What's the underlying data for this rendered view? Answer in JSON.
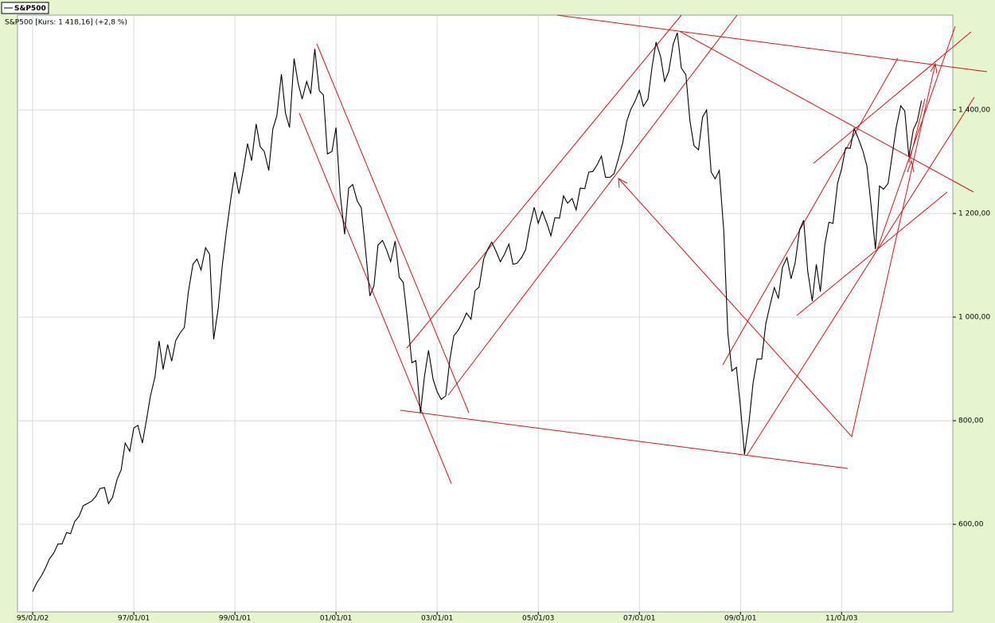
{
  "chart_data": {
    "type": "line",
    "legend_label": "S&P500",
    "title": "S&P500 [Kurs: 1 418,16] (+2,8 %)",
    "grid": true,
    "xlim": [
      1994.7,
      2013.2
    ],
    "xticks": [
      {
        "value": 1995.0,
        "label": "95/01/02"
      },
      {
        "value": 1997.0,
        "label": "97/01/01"
      },
      {
        "value": 1999.0,
        "label": "99/01/01"
      },
      {
        "value": 2001.0,
        "label": "01/01/01"
      },
      {
        "value": 2003.0,
        "label": "03/01/01"
      },
      {
        "value": 2005.0,
        "label": "05/01/03"
      },
      {
        "value": 2007.0,
        "label": "07/01/01"
      },
      {
        "value": 2009.0,
        "label": "09/01/01"
      },
      {
        "value": 2011.0,
        "label": "11/01/03"
      }
    ],
    "ylim": [
      431,
      1583
    ],
    "yticks": [
      {
        "value": 600,
        "label": "600,00"
      },
      {
        "value": 800,
        "label": "800,00"
      },
      {
        "value": 1000,
        "label": "1 000,00"
      },
      {
        "value": 1200,
        "label": "1 200,00"
      },
      {
        "value": 1400,
        "label": "1 400,00"
      }
    ],
    "x": [
      1995.0,
      1995.08,
      1995.17,
      1995.25,
      1995.33,
      1995.42,
      1995.5,
      1995.58,
      1995.67,
      1995.75,
      1995.83,
      1995.92,
      1996.0,
      1996.08,
      1996.17,
      1996.25,
      1996.33,
      1996.42,
      1996.5,
      1996.58,
      1996.67,
      1996.75,
      1996.83,
      1996.92,
      1997.0,
      1997.08,
      1997.17,
      1997.25,
      1997.33,
      1997.42,
      1997.5,
      1997.58,
      1997.67,
      1997.75,
      1997.83,
      1997.92,
      1998.0,
      1998.08,
      1998.17,
      1998.25,
      1998.33,
      1998.42,
      1998.5,
      1998.58,
      1998.67,
      1998.75,
      1998.83,
      1998.92,
      1999.0,
      1999.08,
      1999.17,
      1999.25,
      1999.33,
      1999.42,
      1999.5,
      1999.58,
      1999.67,
      1999.75,
      1999.83,
      1999.92,
      2000.0,
      2000.08,
      2000.17,
      2000.25,
      2000.33,
      2000.42,
      2000.5,
      2000.58,
      2000.67,
      2000.75,
      2000.83,
      2000.92,
      2001.0,
      2001.08,
      2001.17,
      2001.25,
      2001.33,
      2001.42,
      2001.5,
      2001.58,
      2001.67,
      2001.75,
      2001.83,
      2001.92,
      2002.0,
      2002.08,
      2002.17,
      2002.25,
      2002.33,
      2002.42,
      2002.5,
      2002.58,
      2002.67,
      2002.75,
      2002.83,
      2002.92,
      2003.0,
      2003.08,
      2003.17,
      2003.25,
      2003.33,
      2003.42,
      2003.5,
      2003.58,
      2003.67,
      2003.75,
      2003.83,
      2003.92,
      2004.0,
      2004.08,
      2004.17,
      2004.25,
      2004.33,
      2004.42,
      2004.5,
      2004.58,
      2004.67,
      2004.75,
      2004.83,
      2004.92,
      2005.0,
      2005.08,
      2005.17,
      2005.25,
      2005.33,
      2005.42,
      2005.5,
      2005.58,
      2005.67,
      2005.75,
      2005.83,
      2005.92,
      2006.0,
      2006.08,
      2006.17,
      2006.25,
      2006.33,
      2006.42,
      2006.5,
      2006.58,
      2006.67,
      2006.75,
      2006.83,
      2006.92,
      2007.0,
      2007.08,
      2007.17,
      2007.25,
      2007.33,
      2007.42,
      2007.5,
      2007.58,
      2007.67,
      2007.75,
      2007.83,
      2007.92,
      2008.0,
      2008.08,
      2008.17,
      2008.25,
      2008.33,
      2008.42,
      2008.5,
      2008.58,
      2008.67,
      2008.75,
      2008.83,
      2008.92,
      2009.0,
      2009.08,
      2009.17,
      2009.25,
      2009.33,
      2009.42,
      2009.5,
      2009.58,
      2009.67,
      2009.75,
      2009.83,
      2009.92,
      2010.0,
      2010.08,
      2010.17,
      2010.25,
      2010.33,
      2010.42,
      2010.5,
      2010.58,
      2010.67,
      2010.75,
      2010.83,
      2010.92,
      2011.0,
      2011.08,
      2011.17,
      2011.25,
      2011.33,
      2011.42,
      2011.5,
      2011.58,
      2011.67,
      2011.75,
      2011.83,
      2011.92,
      2012.0,
      2012.08,
      2012.17,
      2012.25,
      2012.33,
      2012.42,
      2012.5,
      2012.58
    ],
    "series": [
      {
        "color": "#000000",
        "values": [
          470,
          487,
          500,
          515,
          533,
          545,
          562,
          562,
          584,
          582,
          605,
          616,
          636,
          640,
          645,
          654,
          669,
          671,
          640,
          652,
          687,
          705,
          757,
          741,
          786,
          791,
          757,
          801,
          848,
          885,
          954,
          899,
          947,
          915,
          955,
          970,
          980,
          1049,
          1102,
          1112,
          1091,
          1134,
          1121,
          957,
          1017,
          1099,
          1164,
          1229,
          1280,
          1238,
          1286,
          1335,
          1302,
          1373,
          1329,
          1320,
          1283,
          1363,
          1389,
          1469,
          1394,
          1366,
          1499,
          1452,
          1421,
          1455,
          1431,
          1518,
          1437,
          1429,
          1315,
          1320,
          1366,
          1240,
          1160,
          1249,
          1256,
          1224,
          1211,
          1134,
          1041,
          1060,
          1139,
          1148,
          1130,
          1107,
          1147,
          1077,
          1067,
          990,
          912,
          916,
          815,
          886,
          936,
          880,
          856,
          841,
          848,
          917,
          964,
          975,
          990,
          1008,
          996,
          1051,
          1058,
          1112,
          1131,
          1145,
          1126,
          1107,
          1121,
          1141,
          1102,
          1104,
          1115,
          1130,
          1174,
          1212,
          1181,
          1204,
          1181,
          1157,
          1192,
          1191,
          1234,
          1220,
          1229,
          1207,
          1249,
          1248,
          1280,
          1281,
          1295,
          1311,
          1270,
          1270,
          1277,
          1304,
          1336,
          1378,
          1401,
          1418,
          1438,
          1407,
          1421,
          1482,
          1531,
          1503,
          1455,
          1474,
          1527,
          1549,
          1481,
          1468,
          1379,
          1331,
          1323,
          1386,
          1400,
          1280,
          1267,
          1283,
          1166,
          969,
          896,
          903,
          826,
          735,
          798,
          873,
          919,
          919,
          987,
          1021,
          1057,
          1036,
          1096,
          1115,
          1074,
          1104,
          1169,
          1187,
          1089,
          1031,
          1102,
          1049,
          1141,
          1183,
          1181,
          1258,
          1286,
          1327,
          1326,
          1364,
          1345,
          1321,
          1292,
          1219,
          1131,
          1253,
          1247,
          1258,
          1312,
          1366,
          1408,
          1398,
          1310,
          1362,
          1379,
          1418
        ]
      }
    ]
  }
}
